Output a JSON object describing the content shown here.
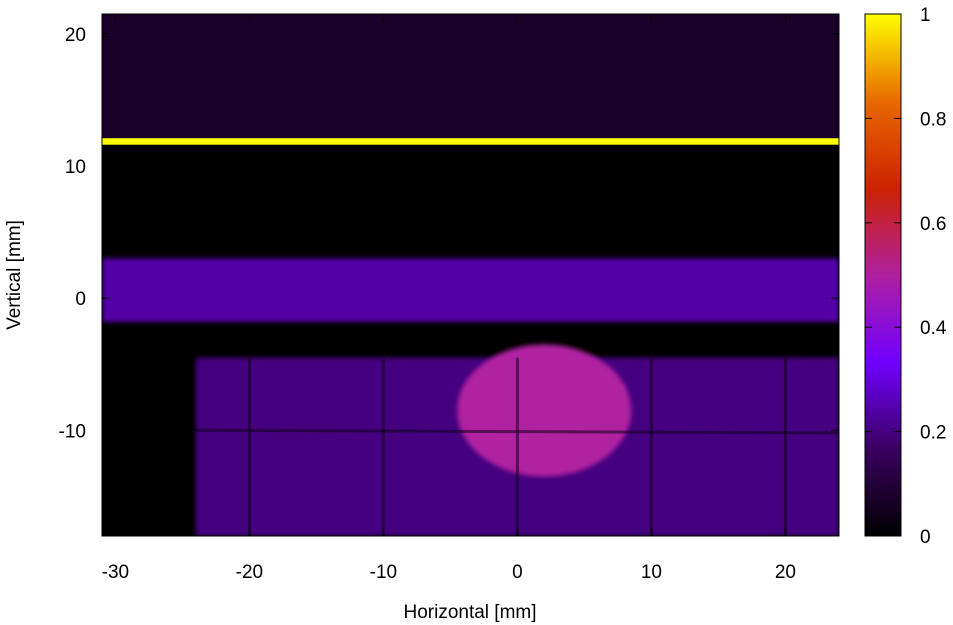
{
  "chart_data": {
    "type": "heatmap",
    "title": "",
    "xlabel": "Horizontal [mm]",
    "ylabel": "Vertical [mm]",
    "xlim": [
      -31,
      24
    ],
    "ylim": [
      -18,
      21.5
    ],
    "x_ticks": [
      {
        "value": -30,
        "label": "-30"
      },
      {
        "value": -20,
        "label": "-20"
      },
      {
        "value": -10,
        "label": "-10"
      },
      {
        "value": 0,
        "label": "0"
      },
      {
        "value": 10,
        "label": "10"
      },
      {
        "value": 20,
        "label": "20"
      }
    ],
    "y_ticks": [
      {
        "value": -10,
        "label": "-10"
      },
      {
        "value": 0,
        "label": "0"
      },
      {
        "value": 10,
        "label": "10"
      },
      {
        "value": 20,
        "label": "20"
      }
    ],
    "colorbar": {
      "range": [
        0,
        1
      ],
      "ticks": [
        {
          "value": 0,
          "label": "0"
        },
        {
          "value": 0.2,
          "label": "0.2"
        },
        {
          "value": 0.4,
          "label": "0.4"
        },
        {
          "value": 0.6,
          "label": "0.6"
        },
        {
          "value": 0.8,
          "label": "0.8"
        },
        {
          "value": 1,
          "label": "1"
        }
      ],
      "colormap": [
        "#000000",
        "#3a0060",
        "#7000ff",
        "#b020a0",
        "#cc2200",
        "#e86a00",
        "#ffff00"
      ]
    },
    "grid": false,
    "features": [
      {
        "name": "top faint region",
        "x": [
          -31,
          24
        ],
        "y": [
          12,
          21.5
        ],
        "value": 0.07
      },
      {
        "name": "bright horizontal line",
        "x": [
          -31,
          24
        ],
        "y": [
          11.6,
          12.1
        ],
        "value": 1.0
      },
      {
        "name": "dark band",
        "x": [
          -31,
          24
        ],
        "y": [
          3,
          11.6
        ],
        "value": 0.0
      },
      {
        "name": "horizontal band",
        "x": [
          -31,
          24
        ],
        "y": [
          -1.8,
          3
        ],
        "value": 0.24
      },
      {
        "name": "lower region",
        "x": [
          -24,
          24
        ],
        "y": [
          -18,
          -4.5
        ],
        "value": 0.2
      },
      {
        "name": "central spot",
        "x": [
          -4.5,
          8.5
        ],
        "y": [
          -13.5,
          -3.5
        ],
        "value": 0.5
      }
    ]
  }
}
